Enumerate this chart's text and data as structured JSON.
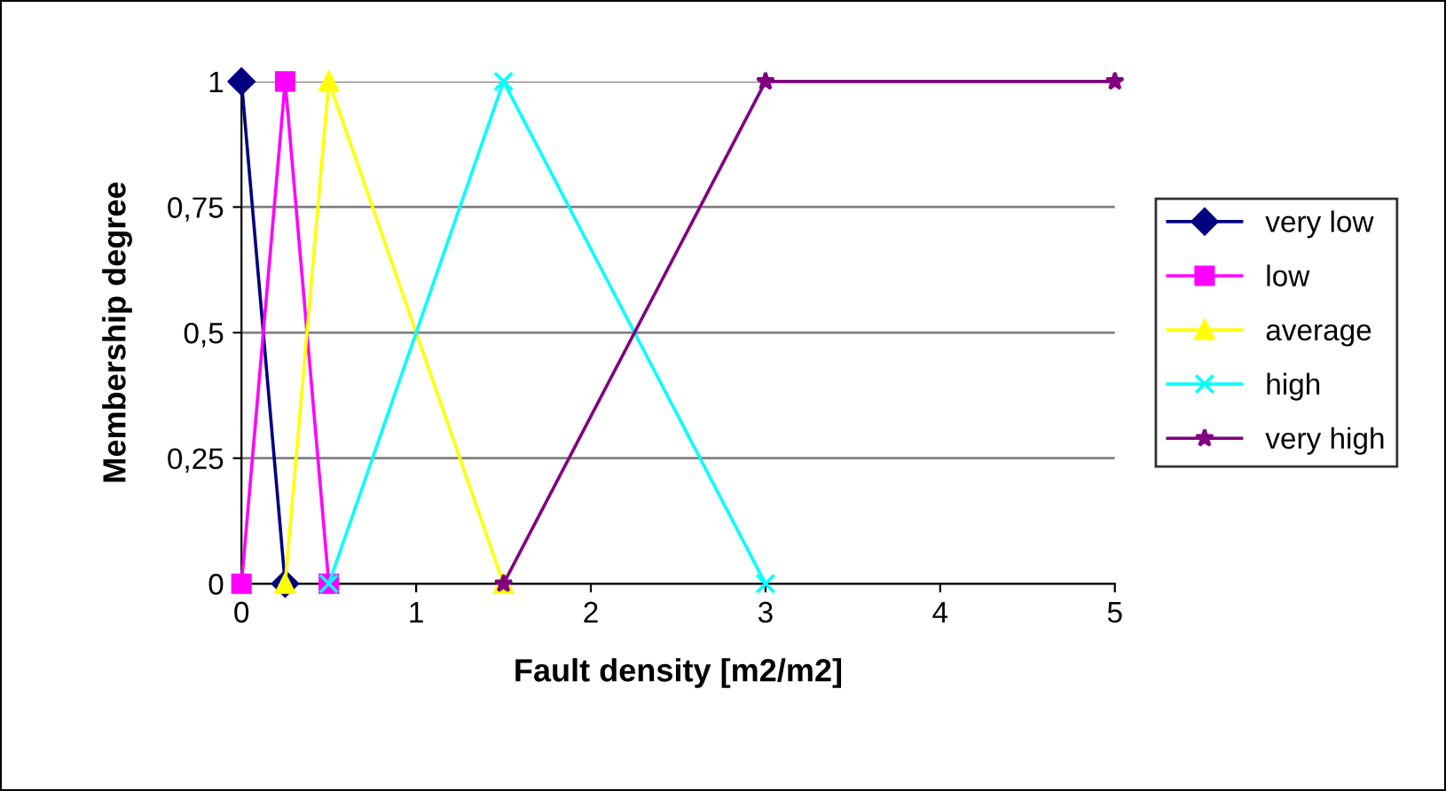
{
  "chart_data": {
    "type": "line",
    "xlabel": "Fault density [m2/m2]",
    "ylabel": "Membership degree",
    "series": [
      {
        "name": "very low",
        "color": "#000080",
        "marker": "diamond",
        "x": [
          0,
          0.25
        ],
        "values": [
          1,
          0
        ]
      },
      {
        "name": "low",
        "color": "#ff00ff",
        "marker": "square",
        "x": [
          0,
          0.25,
          0.5
        ],
        "values": [
          0,
          1,
          0
        ]
      },
      {
        "name": "average",
        "color": "#ffff00",
        "marker": "triangle",
        "x": [
          0.25,
          0.5,
          1.5
        ],
        "values": [
          0,
          1,
          0
        ]
      },
      {
        "name": "high",
        "color": "#00ffff",
        "marker": "cross",
        "x": [
          0.5,
          1.5,
          3
        ],
        "values": [
          0,
          1,
          0
        ]
      },
      {
        "name": "very high",
        "color": "#800080",
        "marker": "star",
        "x": [
          1.5,
          3,
          5
        ],
        "values": [
          0,
          1,
          1
        ]
      }
    ],
    "xlim": [
      0,
      5
    ],
    "xticks": [
      0,
      1,
      2,
      3,
      4,
      5
    ],
    "ylim": [
      0,
      1
    ],
    "yticks": [
      0,
      {
        "value": 0.25,
        "label": "0,25"
      },
      {
        "value": 0.5,
        "label": "0,5"
      },
      {
        "value": 0.75,
        "label": "0,75"
      },
      1
    ],
    "grid": "y",
    "legend": "right",
    "line_style": "solid"
  }
}
